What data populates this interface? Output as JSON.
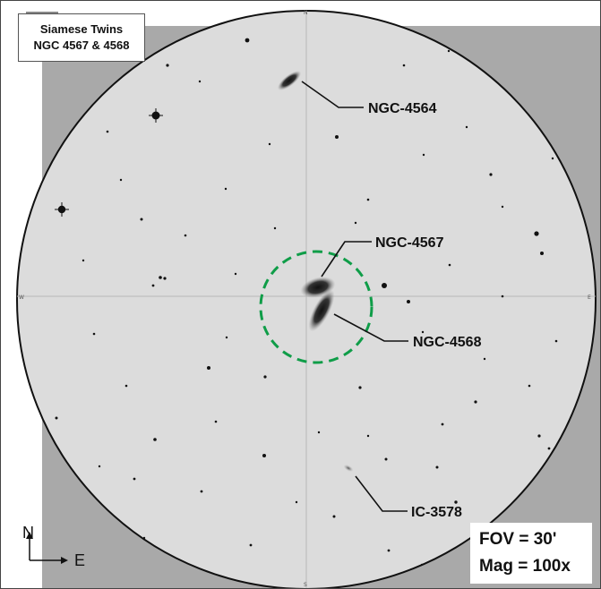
{
  "title": {
    "line1": "Siamese Twins",
    "line2": "NGC 4567 & 4568"
  },
  "labels": {
    "ngc4564": "NGC-4564",
    "ngc4567": "NGC-4567",
    "ngc4568": "NGC-4568",
    "ic3578": "IC-3578"
  },
  "info": {
    "fov": "FOV = 30'",
    "mag": "Mag = 100x"
  },
  "compass": {
    "north": "N",
    "east": "E"
  },
  "cardinals": {
    "n": "N",
    "s": "S",
    "w": "W",
    "e": "E"
  },
  "colors": {
    "sky": "#dcdcdc",
    "outer": "#a9a9a9",
    "ring": "#0f9d48",
    "circle_edge": "#111111"
  }
}
